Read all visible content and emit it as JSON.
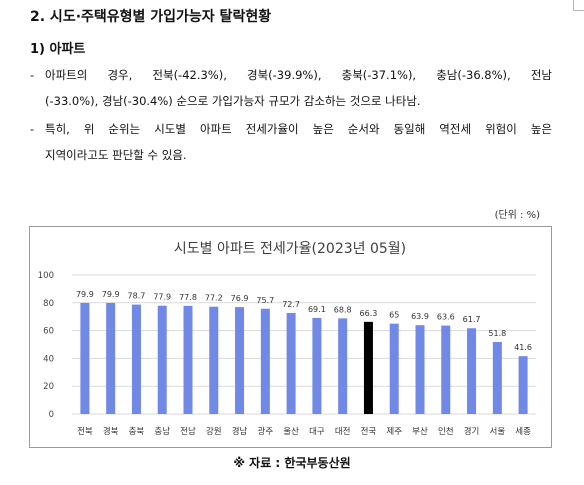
{
  "heading": "2. 시도·주택유형별 가입가능자 탈락현황",
  "subheading": "1) 아파트",
  "bullets": [
    {
      "dash": "-",
      "line1": "아파트의 경우, 전북(-42.3%), 경북(-39.9%), 충북(-37.1%), 충남(-36.8%), 전남",
      "line2": "(-33.0%), 경남(-30.4%) 순으로 가입가능자 규모가 감소하는 것으로 나타남."
    },
    {
      "dash": "-",
      "line1": "특히, 위 순위는 시도별 아파트 전세가율이 높은 순서와 동일해 역전세 위험이 높은",
      "line2": "지역이라고도 판단할 수 있음."
    }
  ],
  "unit_label": "(단위 : %)",
  "source_label": "※ 자료 : 한국부동산원",
  "colors": {
    "bar": "#7189e6",
    "highlight_bar": "#000000",
    "grid": "#d9d9d9"
  },
  "chart_data": {
    "type": "bar",
    "title": "시도별 아파트 전세가율(2023년 05월)",
    "categories": [
      "전북",
      "경북",
      "충북",
      "충남",
      "전남",
      "강원",
      "경남",
      "광주",
      "울산",
      "대구",
      "대전",
      "전국",
      "제주",
      "부산",
      "인천",
      "경기",
      "서울",
      "세종"
    ],
    "values": [
      79.9,
      79.9,
      78.7,
      77.9,
      77.8,
      77.2,
      76.9,
      75.7,
      72.7,
      69.1,
      68.8,
      66.3,
      65,
      63.9,
      63.6,
      61.7,
      51.8,
      41.6
    ],
    "data_labels": [
      "79.9",
      "79.9",
      "78.7",
      "77.9",
      "77.8",
      "77.2",
      "76.9",
      "75.7",
      "72.7",
      "69.1",
      "68.8",
      "66.3",
      "65",
      "63.9",
      "63.6",
      "61.7",
      "51.8",
      "41.6"
    ],
    "highlight": "전국",
    "yticks": [
      "0",
      "20",
      "40",
      "60",
      "80",
      "100"
    ],
    "ylim": [
      0,
      100
    ],
    "grid": true,
    "legend": "none"
  }
}
